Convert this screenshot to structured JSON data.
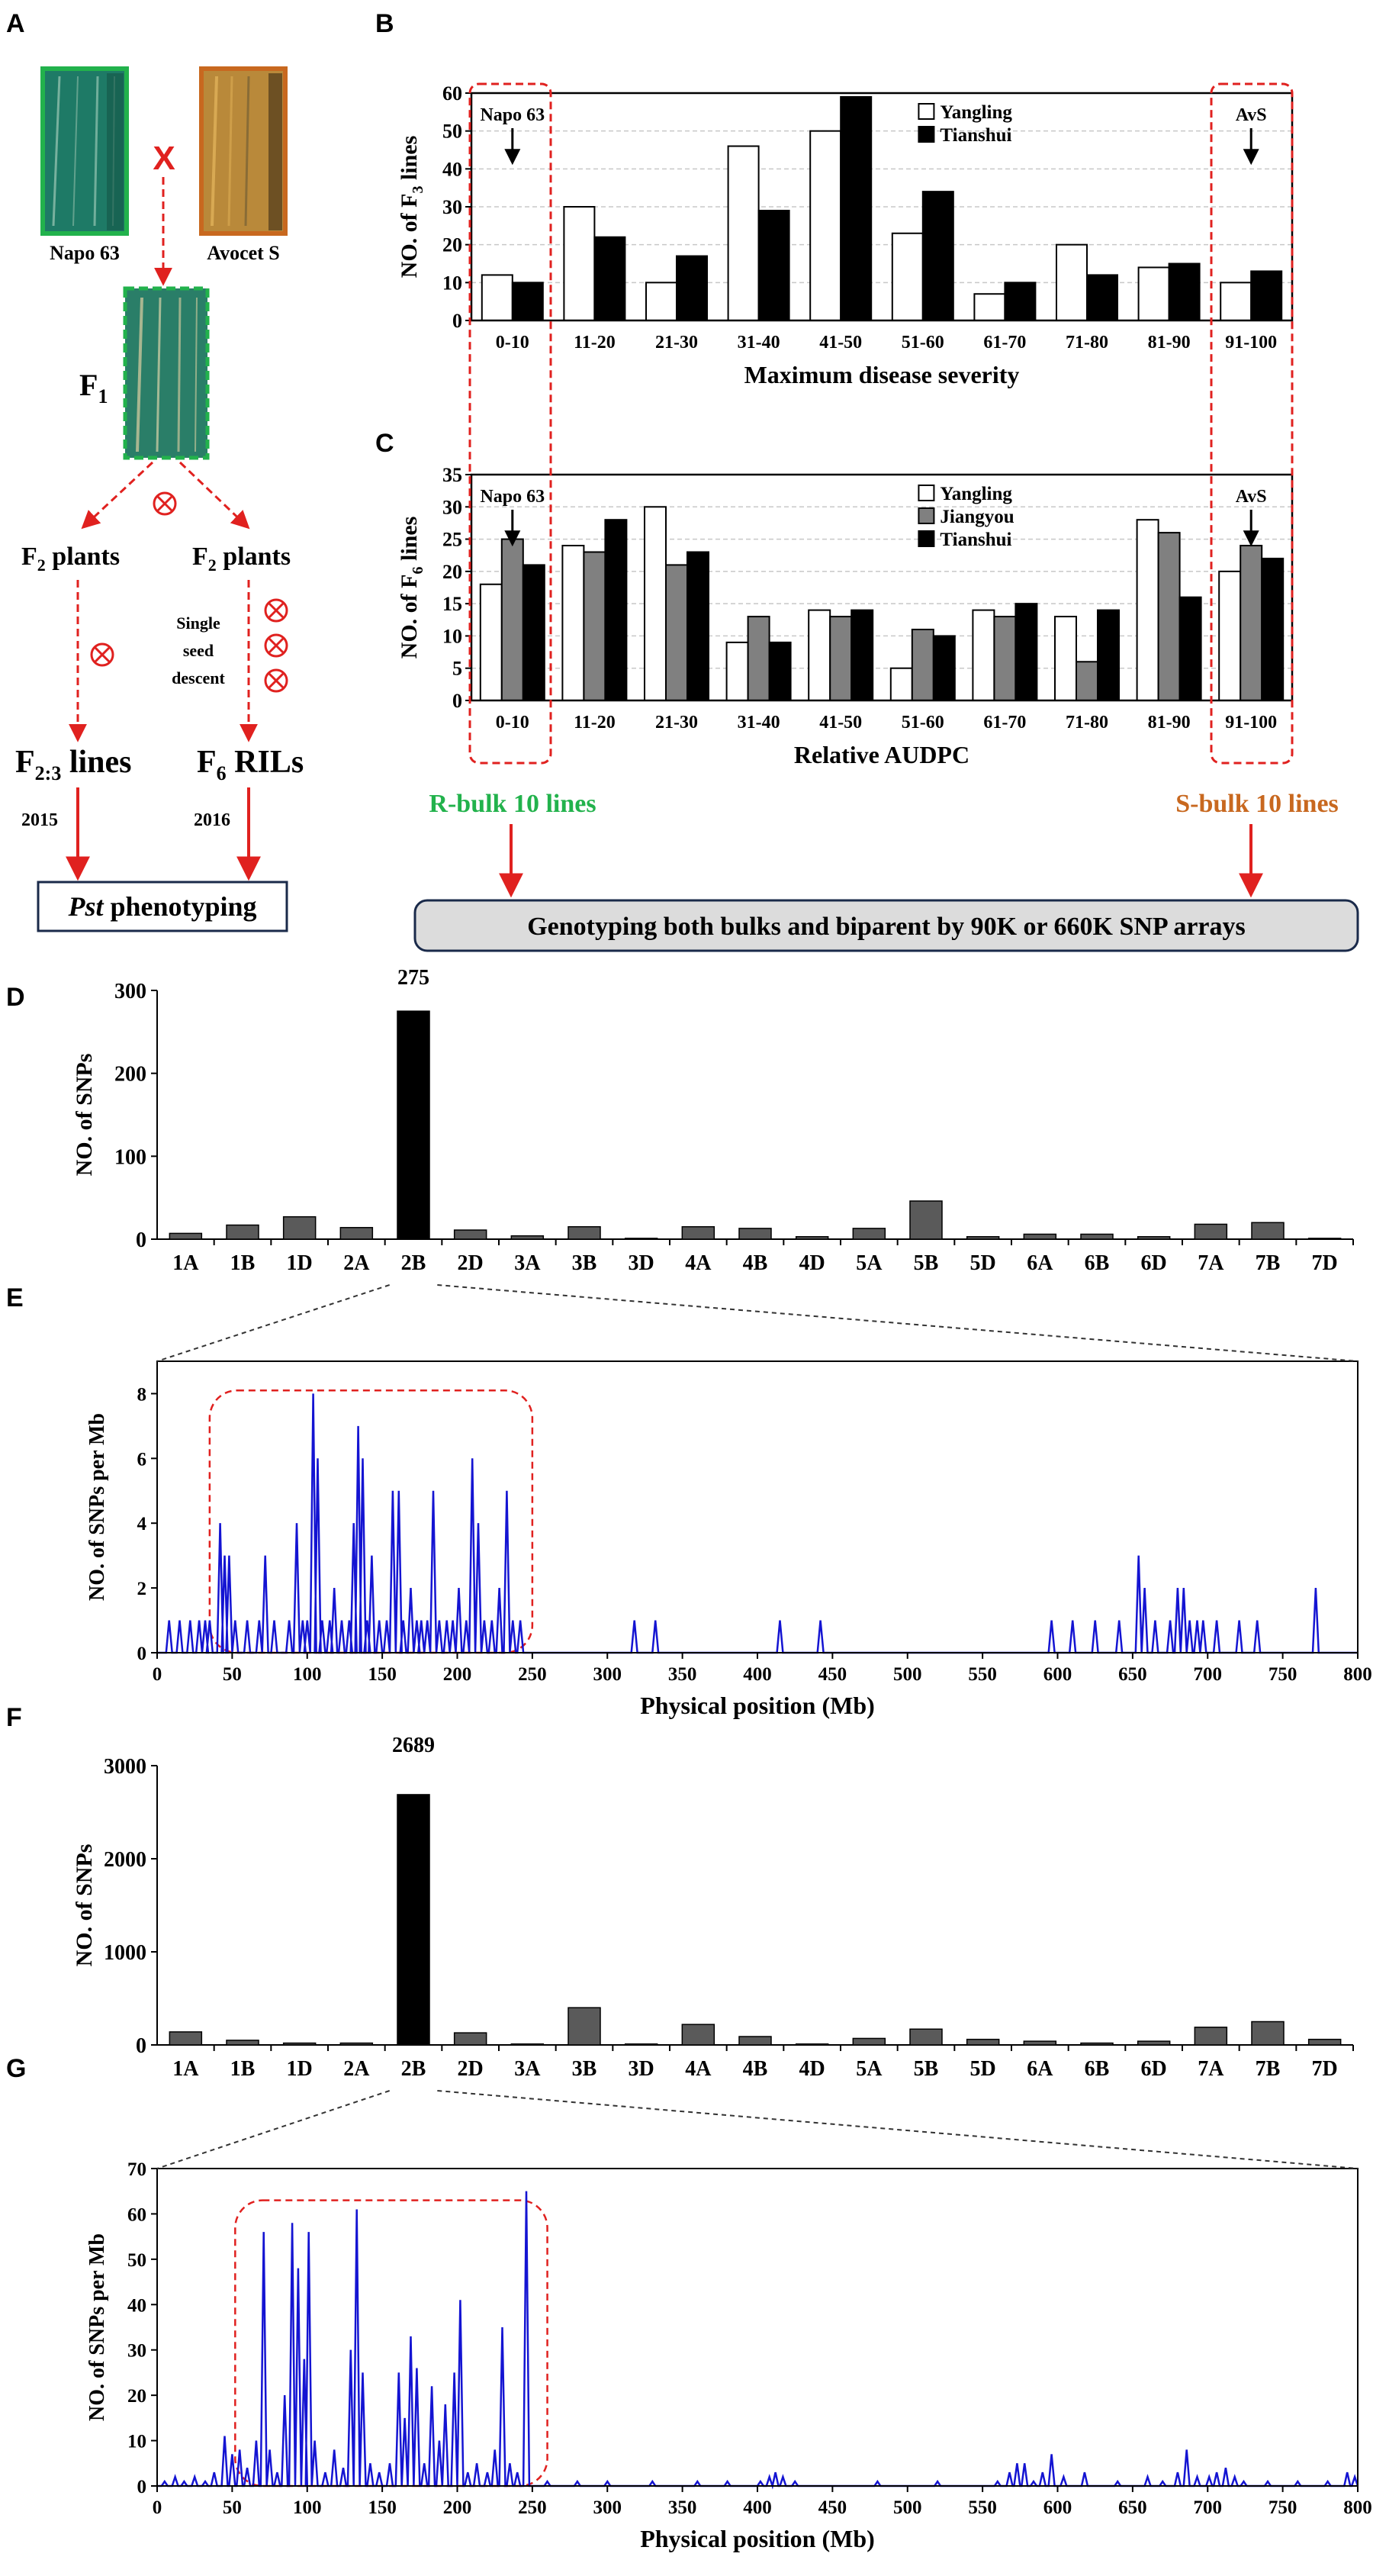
{
  "panel_labels": {
    "a": "A",
    "b": "B",
    "c": "C",
    "d": "D",
    "e": "E",
    "f": "F",
    "g": "G"
  },
  "colors": {
    "red": "#e0211f",
    "green": "#22b24c",
    "orange": "#c8681f",
    "blue": "#1414d2",
    "bar_dark": "#5a5a5a",
    "bar_mid": "#808080",
    "grid": "#c8c8c8",
    "bulk_fill": "#dcdcdc",
    "leaf_green": "#1e7a66",
    "leaf_orange": "#b9893a"
  },
  "panel_a": {
    "parent1": "Napo 63",
    "parent2": "Avocet S",
    "cross_mark": "X",
    "f1_main": "F",
    "f1_sub": "1",
    "f2_left_main": "F",
    "f2_left_sub": "2",
    "f2_left_rest": " plants",
    "f2_right_main": "F",
    "f2_right_sub": "2",
    "f2_right_rest": " plants",
    "ssd_line1": "Single",
    "ssd_line2": "seed",
    "ssd_line3": "descent",
    "f23_main": "F",
    "f23_sub": "2:3",
    "f23_rest": " lines",
    "f6_main": "F",
    "f6_sub": "6",
    "f6_rest": " RILs",
    "year_left": "2015",
    "year_right": "2016",
    "pheno_italic": "Pst",
    "pheno_rest": " phenotyping",
    "self_icon": "self-cross-icon"
  },
  "bulks": {
    "r_bulk": "R-bulk 10 lines",
    "s_bulk": "S-bulk 10 lines",
    "genotyping": "Genotyping both bulks and biparent by 90K or 660K SNP arrays"
  },
  "chart_data": [
    {
      "id": "B",
      "type": "bar",
      "title": "",
      "xlabel": "Maximum disease severity",
      "ylabel_main": "NO. of F",
      "ylabel_sub": "3",
      "ylabel_rest": " lines",
      "categories": [
        "0-10",
        "11-20",
        "21-30",
        "31-40",
        "41-50",
        "51-60",
        "61-70",
        "71-80",
        "81-90",
        "91-100"
      ],
      "series": [
        {
          "name": "Yangling",
          "color": "#ffffff",
          "values": [
            12,
            30,
            10,
            46,
            50,
            23,
            7,
            20,
            14,
            10
          ]
        },
        {
          "name": "Tianshui",
          "color": "#000000",
          "values": [
            10,
            22,
            17,
            29,
            59,
            34,
            10,
            12,
            15,
            13
          ]
        }
      ],
      "ylim": [
        0,
        60
      ],
      "yticks": [
        0,
        10,
        20,
        30,
        40,
        50,
        60
      ],
      "grid": true,
      "annotations": [
        {
          "text": "Napo 63",
          "category": "0-10"
        },
        {
          "text": "AvS",
          "category": "91-100"
        }
      ]
    },
    {
      "id": "C",
      "type": "bar",
      "title": "",
      "xlabel": "Relative AUDPC",
      "ylabel_main": "NO. of F",
      "ylabel_sub": "6",
      "ylabel_rest": " lines",
      "categories": [
        "0-10",
        "11-20",
        "21-30",
        "31-40",
        "41-50",
        "51-60",
        "61-70",
        "71-80",
        "81-90",
        "91-100"
      ],
      "series": [
        {
          "name": "Yangling",
          "color": "#ffffff",
          "values": [
            18,
            24,
            30,
            9,
            14,
            5,
            14,
            13,
            28,
            20
          ]
        },
        {
          "name": "Jiangyou",
          "color": "#808080",
          "values": [
            25,
            23,
            21,
            13,
            13,
            11,
            13,
            6,
            26,
            24
          ]
        },
        {
          "name": "Tianshui",
          "color": "#000000",
          "values": [
            21,
            28,
            23,
            9,
            14,
            10,
            15,
            14,
            16,
            22
          ]
        }
      ],
      "ylim": [
        0,
        35
      ],
      "yticks": [
        0,
        5,
        10,
        15,
        20,
        25,
        30,
        35
      ],
      "grid": true,
      "annotations": [
        {
          "text": "Napo 63",
          "category": "0-10"
        },
        {
          "text": "AvS",
          "category": "91-100"
        }
      ]
    },
    {
      "id": "D",
      "type": "bar",
      "xlabel": "",
      "ylabel": "NO. of SNPs",
      "categories": [
        "1A",
        "1B",
        "1D",
        "2A",
        "2B",
        "2D",
        "3A",
        "3B",
        "3D",
        "4A",
        "4B",
        "4D",
        "5A",
        "5B",
        "5D",
        "6A",
        "6B",
        "6D",
        "7A",
        "7B",
        "7D"
      ],
      "values": [
        7,
        17,
        27,
        14,
        275,
        11,
        4,
        15,
        1,
        15,
        13,
        3,
        13,
        46,
        3,
        6,
        6,
        3,
        18,
        20,
        1
      ],
      "highlight": "2B",
      "highlight_label": "275",
      "ylim": [
        0,
        300
      ],
      "yticks": [
        0,
        100,
        200,
        300
      ]
    },
    {
      "id": "E",
      "type": "line",
      "xlabel": "Physical position (Mb)",
      "ylabel": "NO. of SNPs per Mb",
      "xlim": [
        0,
        800
      ],
      "ylim": [
        0,
        9
      ],
      "xticks": [
        0,
        50,
        100,
        150,
        200,
        250,
        300,
        350,
        400,
        450,
        500,
        550,
        600,
        650,
        700,
        750,
        800
      ],
      "yticks": [
        0,
        2,
        4,
        6,
        8
      ],
      "peaks": [
        [
          8,
          1
        ],
        [
          15,
          1
        ],
        [
          22,
          1
        ],
        [
          28,
          1
        ],
        [
          32,
          1
        ],
        [
          35,
          1
        ],
        [
          42,
          4
        ],
        [
          45,
          3
        ],
        [
          48,
          3
        ],
        [
          52,
          1
        ],
        [
          60,
          1
        ],
        [
          68,
          1
        ],
        [
          72,
          3
        ],
        [
          78,
          1
        ],
        [
          88,
          1
        ],
        [
          93,
          4
        ],
        [
          97,
          1
        ],
        [
          100,
          1
        ],
        [
          104,
          8
        ],
        [
          107,
          6
        ],
        [
          110,
          1
        ],
        [
          115,
          1
        ],
        [
          118,
          2
        ],
        [
          123,
          1
        ],
        [
          128,
          1
        ],
        [
          131,
          4
        ],
        [
          134,
          7
        ],
        [
          137,
          6
        ],
        [
          140,
          1
        ],
        [
          143,
          3
        ],
        [
          148,
          1
        ],
        [
          153,
          1
        ],
        [
          157,
          5
        ],
        [
          161,
          5
        ],
        [
          164,
          1
        ],
        [
          169,
          2
        ],
        [
          173,
          1
        ],
        [
          176,
          1
        ],
        [
          180,
          1
        ],
        [
          184,
          5
        ],
        [
          188,
          1
        ],
        [
          193,
          1
        ],
        [
          197,
          1
        ],
        [
          201,
          2
        ],
        [
          206,
          1
        ],
        [
          210,
          6
        ],
        [
          214,
          4
        ],
        [
          218,
          1
        ],
        [
          223,
          1
        ],
        [
          228,
          2
        ],
        [
          233,
          5
        ],
        [
          237,
          1
        ],
        [
          242,
          1
        ],
        [
          318,
          1
        ],
        [
          332,
          1
        ],
        [
          415,
          1
        ],
        [
          442,
          1
        ],
        [
          596,
          1
        ],
        [
          610,
          1
        ],
        [
          625,
          1
        ],
        [
          641,
          1
        ],
        [
          654,
          3
        ],
        [
          658,
          2
        ],
        [
          665,
          1
        ],
        [
          675,
          1
        ],
        [
          680,
          2
        ],
        [
          684,
          2
        ],
        [
          688,
          1
        ],
        [
          693,
          1
        ],
        [
          697,
          1
        ],
        [
          706,
          1
        ],
        [
          721,
          1
        ],
        [
          733,
          1
        ],
        [
          772,
          2
        ]
      ],
      "highlight_region": [
        35,
        250
      ]
    },
    {
      "id": "F",
      "type": "bar",
      "xlabel": "",
      "ylabel": "NO. of SNPs",
      "categories": [
        "1A",
        "1B",
        "1D",
        "2A",
        "2B",
        "2D",
        "3A",
        "3B",
        "3D",
        "4A",
        "4B",
        "4D",
        "5A",
        "5B",
        "5D",
        "6A",
        "6B",
        "6D",
        "7A",
        "7B",
        "7D"
      ],
      "values": [
        140,
        50,
        20,
        20,
        2689,
        130,
        10,
        400,
        10,
        220,
        90,
        10,
        70,
        170,
        60,
        40,
        20,
        40,
        190,
        250,
        60
      ],
      "highlight": "2B",
      "highlight_label": "2689",
      "ylim": [
        0,
        3000
      ],
      "yticks": [
        0,
        1000,
        2000,
        3000
      ]
    },
    {
      "id": "G",
      "type": "line",
      "xlabel": "Physical position (Mb)",
      "ylabel": "NO. of SNPs per Mb",
      "xlim": [
        0,
        800
      ],
      "ylim": [
        0,
        70
      ],
      "xticks": [
        0,
        50,
        100,
        150,
        200,
        250,
        300,
        350,
        400,
        450,
        500,
        550,
        600,
        650,
        700,
        750,
        800
      ],
      "yticks": [
        0,
        10,
        20,
        30,
        40,
        50,
        60,
        70
      ],
      "peaks": [
        [
          5,
          1
        ],
        [
          12,
          2
        ],
        [
          18,
          1
        ],
        [
          25,
          2
        ],
        [
          32,
          1
        ],
        [
          38,
          3
        ],
        [
          45,
          11
        ],
        [
          50,
          7
        ],
        [
          55,
          8
        ],
        [
          60,
          4
        ],
        [
          66,
          10
        ],
        [
          71,
          56
        ],
        [
          75,
          8
        ],
        [
          80,
          3
        ],
        [
          85,
          20
        ],
        [
          90,
          58
        ],
        [
          94,
          48
        ],
        [
          98,
          28
        ],
        [
          101,
          56
        ],
        [
          105,
          10
        ],
        [
          112,
          3
        ],
        [
          118,
          8
        ],
        [
          124,
          4
        ],
        [
          129,
          30
        ],
        [
          133,
          61
        ],
        [
          137,
          25
        ],
        [
          142,
          5
        ],
        [
          148,
          3
        ],
        [
          155,
          5
        ],
        [
          161,
          25
        ],
        [
          165,
          15
        ],
        [
          169,
          33
        ],
        [
          173,
          26
        ],
        [
          178,
          5
        ],
        [
          183,
          22
        ],
        [
          188,
          10
        ],
        [
          192,
          18
        ],
        [
          198,
          25
        ],
        [
          202,
          41
        ],
        [
          207,
          3
        ],
        [
          213,
          5
        ],
        [
          220,
          3
        ],
        [
          225,
          8
        ],
        [
          230,
          35
        ],
        [
          235,
          5
        ],
        [
          240,
          3
        ],
        [
          246,
          65
        ],
        [
          260,
          1
        ],
        [
          280,
          1
        ],
        [
          300,
          1
        ],
        [
          330,
          1
        ],
        [
          360,
          1
        ],
        [
          380,
          1
        ],
        [
          402,
          1
        ],
        [
          408,
          2
        ],
        [
          412,
          3
        ],
        [
          417,
          2
        ],
        [
          425,
          1
        ],
        [
          480,
          1
        ],
        [
          520,
          1
        ],
        [
          560,
          1
        ],
        [
          568,
          3
        ],
        [
          573,
          5
        ],
        [
          578,
          5
        ],
        [
          584,
          1
        ],
        [
          590,
          3
        ],
        [
          596,
          7
        ],
        [
          604,
          2
        ],
        [
          618,
          3
        ],
        [
          640,
          1
        ],
        [
          660,
          2
        ],
        [
          670,
          1
        ],
        [
          680,
          3
        ],
        [
          686,
          8
        ],
        [
          693,
          2
        ],
        [
          701,
          2
        ],
        [
          706,
          3
        ],
        [
          712,
          4
        ],
        [
          718,
          2
        ],
        [
          724,
          1
        ],
        [
          740,
          1
        ],
        [
          760,
          1
        ],
        [
          780,
          1
        ],
        [
          793,
          3
        ],
        [
          798,
          2
        ]
      ],
      "highlight_region": [
        52,
        260
      ]
    }
  ]
}
